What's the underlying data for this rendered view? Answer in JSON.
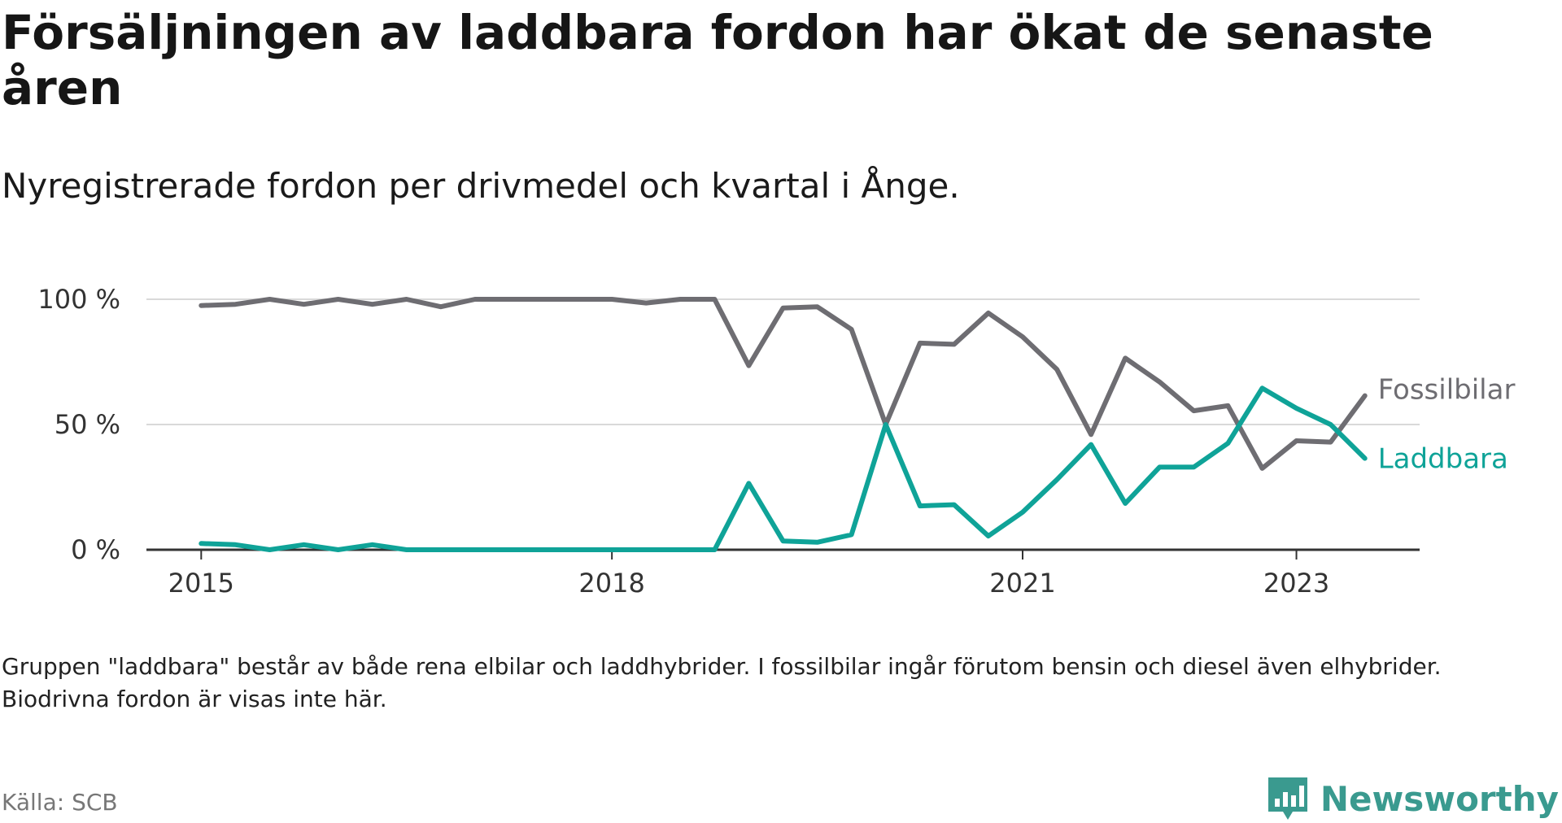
{
  "header": {
    "title": "Försäljningen av laddbara fordon har ökat de senaste åren",
    "subtitle": "Nyregistrerade fordon per drivmedel och kvartal i Ånge."
  },
  "footer": {
    "note": "Gruppen \"laddbara\" består av både rena elbilar och laddhybrider. I fossilbilar ingår förutom bensin och diesel även elhybrider. Biodrivna fordon är visas inte här.",
    "source": "Källa: SCB",
    "brand": "Newsworthy"
  },
  "colors": {
    "fossil": "#6e6d72",
    "laddbara": "#0fa398",
    "grid": "#d9d9d9",
    "axis": "#333333",
    "brand": "#3a9a8f"
  },
  "chart_data": {
    "type": "line",
    "title": "Försäljningen av laddbara fordon har ökat de senaste åren",
    "subtitle": "Nyregistrerade fordon per drivmedel och kvartal i Ånge.",
    "xlabel": "",
    "ylabel": "",
    "x_unit": "year",
    "xlim": [
      2014.6,
      2023.9
    ],
    "ylim": [
      0,
      100
    ],
    "yticks": [
      0,
      50,
      100
    ],
    "ytick_labels": [
      "0 %",
      "50 %",
      "100 %"
    ],
    "xticks": [
      2015,
      2018,
      2021,
      2023
    ],
    "xtick_labels": [
      "2015",
      "2018",
      "2021",
      "2023"
    ],
    "grid": true,
    "legend": "direct-labels-right",
    "x": [
      2015.0,
      2015.25,
      2015.5,
      2015.75,
      2016.0,
      2016.25,
      2016.5,
      2016.75,
      2017.0,
      2017.25,
      2017.5,
      2017.75,
      2018.0,
      2018.25,
      2018.5,
      2018.75,
      2019.0,
      2019.25,
      2019.5,
      2019.75,
      2020.0,
      2020.25,
      2020.5,
      2020.75,
      2021.0,
      2021.25,
      2021.5,
      2021.75,
      2022.0,
      2022.25,
      2022.5,
      2022.75,
      2023.0,
      2023.25,
      2023.5
    ],
    "series": [
      {
        "name": "Fossilbilar",
        "color": "#6e6d72",
        "values": [
          97.5,
          98,
          100,
          98,
          100,
          98,
          100,
          97,
          100,
          100,
          100,
          100,
          100,
          98.5,
          100,
          100,
          73.5,
          96.5,
          97,
          88,
          50,
          82.5,
          82,
          94.5,
          85,
          72,
          46,
          76.5,
          67,
          55.5,
          57.5,
          32.5,
          43.5,
          43,
          61.5
        ]
      },
      {
        "name": "Laddbara",
        "color": "#0fa398",
        "values": [
          2.5,
          2,
          0,
          2,
          0,
          2,
          0,
          0,
          0,
          0,
          0,
          0,
          0,
          0,
          0,
          0,
          26.5,
          3.5,
          3,
          6,
          50,
          17.5,
          18,
          5.5,
          15,
          28,
          42,
          18.5,
          33,
          33,
          42.5,
          64.5,
          56.5,
          50,
          36.5
        ]
      }
    ]
  }
}
